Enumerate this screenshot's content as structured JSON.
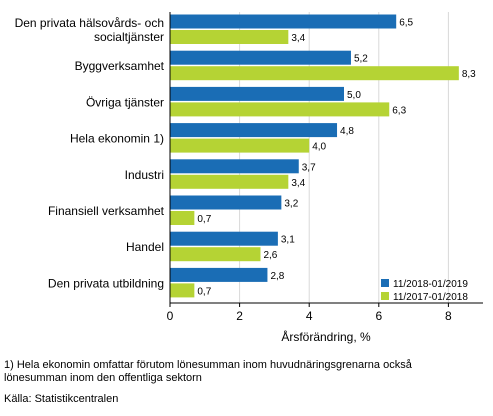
{
  "chart_data": {
    "type": "bar",
    "orientation": "horizontal",
    "categories": [
      [
        "Den privata hälsovårds- och",
        "socialtjänster"
      ],
      [
        "Byggverksamhet"
      ],
      [
        "Övriga tjänster"
      ],
      [
        "Hela ekonomin 1)"
      ],
      [
        "Industri"
      ],
      [
        "Finansiell verksamhet"
      ],
      [
        "Handel"
      ],
      [
        "Den privata utbildning"
      ]
    ],
    "series": [
      {
        "name": "11/2018-01/2019",
        "color": "#1a6db5",
        "values": [
          6.5,
          5.2,
          5.0,
          4.8,
          3.7,
          3.2,
          3.1,
          2.8
        ],
        "labels": [
          "6,5",
          "5,2",
          "5,0",
          "4,8",
          "3,7",
          "3,2",
          "3,1",
          "2,8"
        ]
      },
      {
        "name": "11/2017-01/2018",
        "color": "#b5d334",
        "values": [
          3.4,
          8.3,
          6.3,
          4.0,
          3.4,
          0.7,
          2.6,
          0.7
        ],
        "labels": [
          "3,4",
          "8,3",
          "6,3",
          "4,0",
          "3,4",
          "0,7",
          "2,6",
          "0,7"
        ]
      }
    ],
    "xlim": [
      0,
      9
    ],
    "xticks": [
      0,
      2,
      4,
      6,
      8
    ],
    "xlabel": "Årsförändring, %",
    "grid": "vertical",
    "legend_position": "bottom-right"
  },
  "footnotes": {
    "note_line1": "1) Hela ekonomin omfattar förutom lönesumman inom huvudnäringsgrenarna också",
    "note_line2": "lönesumman inom den offentliga sektorn",
    "source": "Källa: Statistikcentralen"
  }
}
